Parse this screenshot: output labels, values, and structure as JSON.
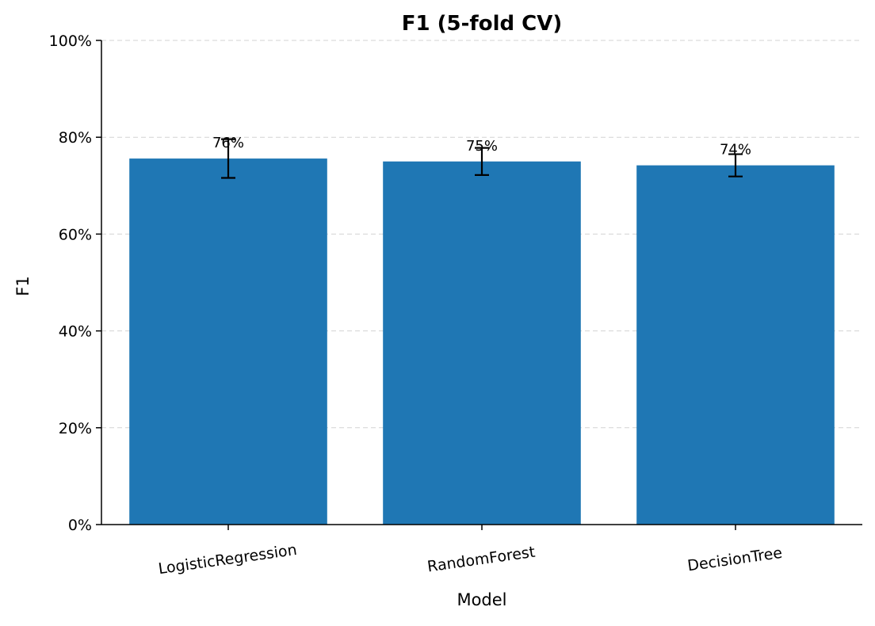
{
  "chart_data": {
    "type": "bar",
    "title": "F1 (5-fold CV)",
    "xlabel": "Model",
    "ylabel": "F1",
    "categories": [
      "LogisticRegression",
      "RandomForest",
      "DecisionTree"
    ],
    "values": [
      0.756,
      0.75,
      0.742
    ],
    "error": [
      0.04,
      0.028,
      0.023
    ],
    "data_labels": [
      "76%",
      "75%",
      "74%"
    ],
    "ylim": [
      0,
      1
    ],
    "yticks": [
      0,
      0.2,
      0.4,
      0.6,
      0.8,
      1.0
    ],
    "ytick_labels": [
      "0%",
      "20%",
      "40%",
      "60%",
      "80%",
      "100%"
    ],
    "grid": "y, dashed",
    "legend": "none",
    "bar_color": "#1f77b4",
    "grid_color": "#d3d3d3",
    "error_color": "#000000"
  }
}
